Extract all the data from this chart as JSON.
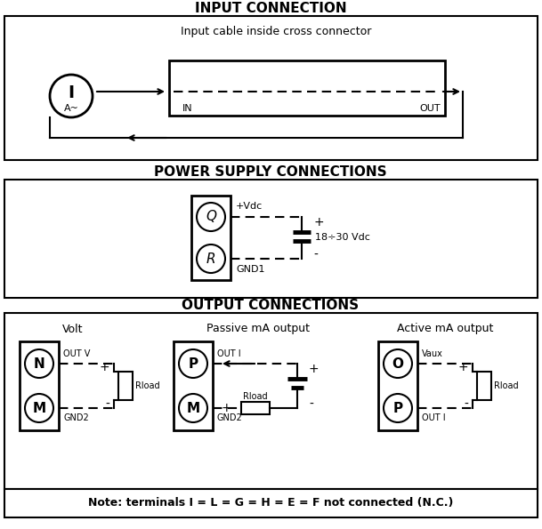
{
  "bg_color": "#ffffff",
  "section1_title": "INPUT CONNECTION",
  "section2_title": "POWER SUPPLY CONNECTIONS",
  "section3_title": "OUTPUT CONNECTIONS",
  "note": "Note: terminals I = L = G = H = E = F not connected (N.C.)"
}
